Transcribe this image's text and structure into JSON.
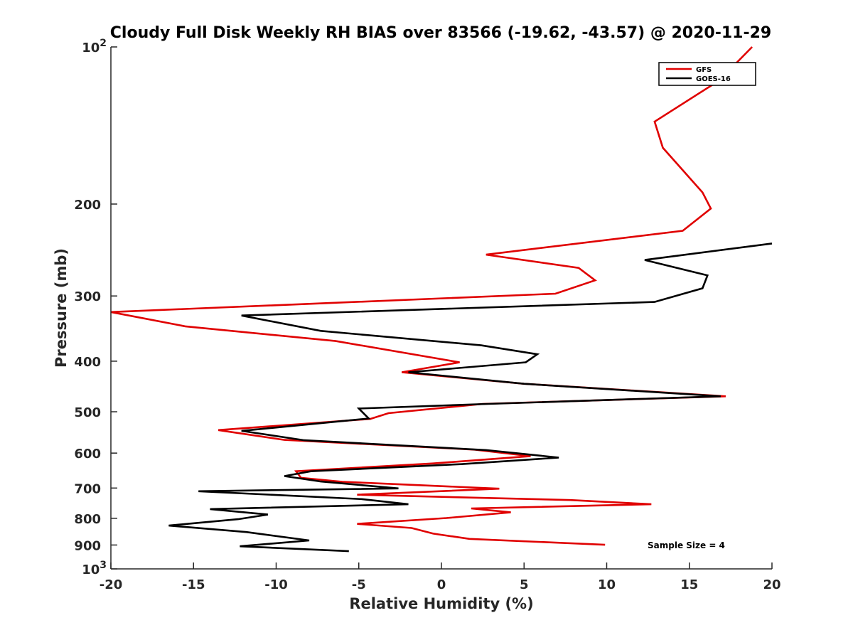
{
  "chart_data": {
    "type": "line",
    "title": "Cloudy Full Disk Weekly RH BIAS over 83566 (-19.62, -43.57) @ 2020-11-29",
    "xlabel": "Relative Humidity (%)",
    "ylabel": "Pressure (mb)",
    "xlim": [
      -20,
      20
    ],
    "ylim": [
      100,
      1000
    ],
    "y_scale": "log",
    "y_reversed": true,
    "x_ticks": [
      "-20",
      "-15",
      "-10",
      "-5",
      "0",
      "5",
      "10",
      "15",
      "20"
    ],
    "y_ticks": [
      {
        "value": 100,
        "base": "10",
        "exp": "2"
      },
      {
        "value": 200,
        "label": "200"
      },
      {
        "value": 300,
        "label": "300"
      },
      {
        "value": 400,
        "label": "400"
      },
      {
        "value": 500,
        "label": "500"
      },
      {
        "value": 600,
        "label": "600"
      },
      {
        "value": 700,
        "label": "700"
      },
      {
        "value": 800,
        "label": "800"
      },
      {
        "value": 900,
        "label": "900"
      },
      {
        "value": 1000,
        "base": "10",
        "exp": "3"
      }
    ],
    "grid": false,
    "legend_position": "top-right",
    "annotation": "Sample Size = 4",
    "series": [
      {
        "name": "GFS",
        "color": "#e00000",
        "points": [
          [
            18.8,
            100
          ],
          [
            16.8,
            116
          ],
          [
            12.9,
            139
          ],
          [
            13.4,
            156
          ],
          [
            15.8,
            190
          ],
          [
            16.3,
            204
          ],
          [
            14.6,
            225
          ],
          [
            2.7,
            250
          ],
          [
            8.3,
            265
          ],
          [
            9.3,
            280
          ],
          [
            6.9,
            297
          ],
          [
            -20.0,
            322
          ],
          [
            -15.5,
            343
          ],
          [
            -6.4,
            366
          ],
          [
            1.1,
            402
          ],
          [
            -2.4,
            420
          ],
          [
            5.0,
            442
          ],
          [
            17.2,
            467
          ],
          [
            2.5,
            483
          ],
          [
            -3.2,
            503
          ],
          [
            -4.3,
            516
          ],
          [
            -13.5,
            542
          ],
          [
            -9.5,
            566
          ],
          [
            2.0,
            591
          ],
          [
            5.4,
            608
          ],
          [
            -0.5,
            628
          ],
          [
            -8.8,
            650
          ],
          [
            -8.5,
            669
          ],
          [
            -6.0,
            681
          ],
          [
            3.5,
            702
          ],
          [
            -5.1,
            721
          ],
          [
            7.8,
            738
          ],
          [
            12.7,
            752
          ],
          [
            1.8,
            766
          ],
          [
            4.2,
            779
          ],
          [
            0.3,
            799
          ],
          [
            -5.1,
            820
          ],
          [
            -1.8,
            835
          ],
          [
            -0.5,
            856
          ],
          [
            1.7,
            876
          ],
          [
            9.9,
            899
          ]
        ]
      },
      {
        "name": "GOES-16",
        "color": "#000000",
        "points": [
          [
            20.0,
            238
          ],
          [
            12.3,
            256
          ],
          [
            16.1,
            274
          ],
          [
            15.8,
            290
          ],
          [
            12.9,
            308
          ],
          [
            -12.1,
            327
          ],
          [
            -7.3,
            350
          ],
          [
            2.4,
            373
          ],
          [
            5.8,
            388
          ],
          [
            5.1,
            402
          ],
          [
            -2.0,
            420
          ],
          [
            5.0,
            442
          ],
          [
            16.9,
            467
          ],
          [
            2.8,
            483
          ],
          [
            -5.0,
            493
          ],
          [
            -4.4,
            515
          ],
          [
            -12.1,
            544
          ],
          [
            -8.3,
            567
          ],
          [
            2.7,
            592
          ],
          [
            7.1,
            612
          ],
          [
            1.2,
            630
          ],
          [
            -7.9,
            650
          ],
          [
            -9.5,
            664
          ],
          [
            -7.3,
            680
          ],
          [
            -2.6,
            701
          ],
          [
            -14.7,
            710
          ],
          [
            -4.8,
            735
          ],
          [
            -2.0,
            752
          ],
          [
            -14.0,
            768
          ],
          [
            -10.5,
            787
          ],
          [
            -12.3,
            803
          ],
          [
            -16.5,
            826
          ],
          [
            -11.8,
            850
          ],
          [
            -8.0,
            882
          ],
          [
            -12.2,
            905
          ],
          [
            -5.6,
            925
          ]
        ]
      }
    ]
  }
}
